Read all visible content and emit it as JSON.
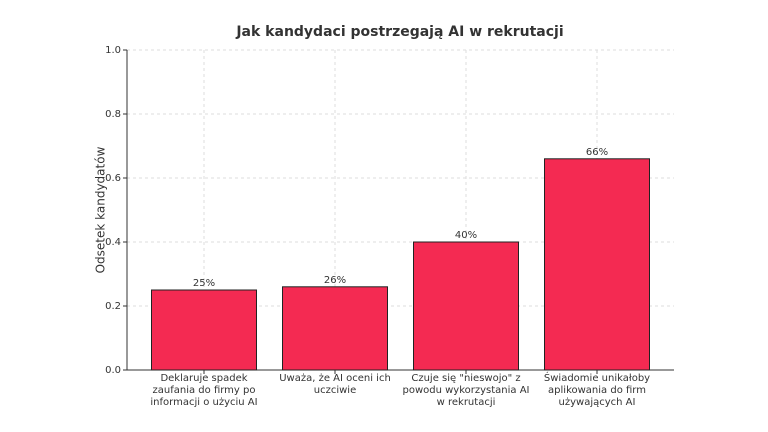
{
  "chart_data": {
    "type": "bar",
    "title": "Jak kandydaci postrzegają AI w rekrutacji",
    "y_label": "Odsetek kandydatów",
    "categories": [
      "Deklaruje spadek zaufania do firmy po informacji o użyciu AI",
      "Uważa, że AI oceni ich uczciwie",
      "Czuje się \"nieswojo\" z powodu wykorzystania AI w rekrutacji",
      "Świadomie unikałoby aplikowania do firm używających AI"
    ],
    "values": [
      0.25,
      0.26,
      0.4,
      0.66
    ],
    "value_labels": [
      "25%",
      "26%",
      "40%",
      "66%"
    ],
    "color": "#f42a52",
    "ylim": [
      0,
      1
    ],
    "yticks": [
      {
        "value": 0,
        "label": "0.0"
      },
      {
        "value": 0.2,
        "label": "0.2"
      },
      {
        "value": 0.4,
        "label": "0.4"
      },
      {
        "value": 0.6,
        "label": "0.6"
      },
      {
        "value": 0.8,
        "label": "0.8"
      },
      {
        "value": 1,
        "label": "1.0"
      }
    ],
    "grid": true
  }
}
